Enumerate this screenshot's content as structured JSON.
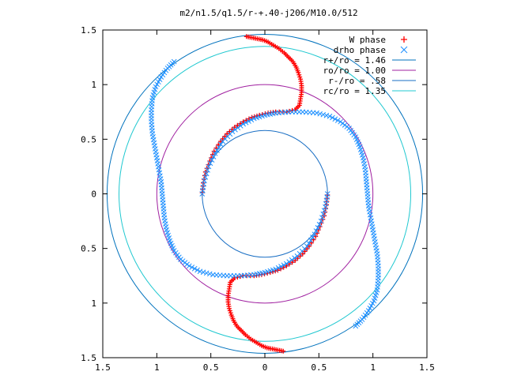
{
  "chart_data": {
    "type": "scatter",
    "title": "m2/n1.5/q1.5/r-+.40-j206/M10.0/512",
    "xlim": [
      -1.5,
      1.5
    ],
    "ylim": [
      -1.5,
      1.5
    ],
    "x_ticks": [
      "1.5",
      "1",
      "0.5",
      "0",
      "0.5",
      "1",
      "1.5"
    ],
    "y_ticks": [
      "1.5",
      "1",
      "0.5",
      "0",
      "0.5",
      "1",
      "1.5"
    ],
    "x_tick_values": [
      -1.5,
      -1,
      -0.5,
      0,
      0.5,
      1,
      1.5
    ],
    "y_tick_values": [
      1.5,
      1,
      0.5,
      0,
      -0.5,
      -1,
      -1.5
    ],
    "legend_position": "top-right",
    "circles": [
      {
        "label": "r+/ro = 1.46",
        "r": 1.46,
        "color": "#0072bd"
      },
      {
        "label": "ro/ro = 1.00",
        "r": 1.0,
        "color": "#a020a0"
      },
      {
        "label": "r-/ro = .58",
        "r": 0.58,
        "color": "#1a6fc4"
      },
      {
        "label": "rc/ro = 1.35",
        "r": 1.35,
        "color": "#20c8d0"
      }
    ],
    "series": [
      {
        "name": "W phase",
        "marker": "+",
        "color": "#ff0000",
        "points": [
          [
            -0.17,
            1.44
          ],
          [
            -0.12,
            1.43
          ],
          [
            -0.07,
            1.42
          ],
          [
            -0.02,
            1.41
          ],
          [
            0.03,
            1.39
          ],
          [
            0.08,
            1.36
          ],
          [
            0.13,
            1.33
          ],
          [
            0.18,
            1.29
          ],
          [
            0.22,
            1.25
          ],
          [
            0.26,
            1.21
          ],
          [
            0.29,
            1.16
          ],
          [
            0.31,
            1.11
          ],
          [
            0.33,
            1.05
          ],
          [
            0.34,
            0.99
          ],
          [
            0.34,
            0.93
          ],
          [
            0.33,
            0.87
          ],
          [
            0.32,
            0.81
          ],
          [
            0.28,
            0.77
          ],
          [
            0.2,
            0.75
          ],
          [
            0.1,
            0.75
          ],
          [
            0.03,
            0.74
          ],
          [
            -0.05,
            0.72
          ],
          [
            -0.12,
            0.7
          ],
          [
            -0.2,
            0.66
          ],
          [
            -0.28,
            0.61
          ],
          [
            -0.35,
            0.55
          ],
          [
            -0.41,
            0.48
          ],
          [
            -0.47,
            0.39
          ],
          [
            -0.51,
            0.3
          ],
          [
            -0.55,
            0.2
          ],
          [
            -0.57,
            0.1
          ],
          [
            -0.58,
            0.01
          ],
          [
            0.17,
            -1.44
          ],
          [
            0.12,
            -1.43
          ],
          [
            0.07,
            -1.42
          ],
          [
            0.02,
            -1.41
          ],
          [
            -0.03,
            -1.39
          ],
          [
            -0.08,
            -1.36
          ],
          [
            -0.13,
            -1.33
          ],
          [
            -0.18,
            -1.29
          ],
          [
            -0.22,
            -1.25
          ],
          [
            -0.26,
            -1.21
          ],
          [
            -0.29,
            -1.16
          ],
          [
            -0.31,
            -1.11
          ],
          [
            -0.33,
            -1.05
          ],
          [
            -0.34,
            -0.99
          ],
          [
            -0.34,
            -0.93
          ],
          [
            -0.33,
            -0.87
          ],
          [
            -0.32,
            -0.81
          ],
          [
            -0.28,
            -0.77
          ],
          [
            -0.2,
            -0.75
          ],
          [
            -0.1,
            -0.75
          ],
          [
            -0.03,
            -0.74
          ],
          [
            0.05,
            -0.72
          ],
          [
            0.12,
            -0.7
          ],
          [
            0.2,
            -0.66
          ],
          [
            0.28,
            -0.61
          ],
          [
            0.35,
            -0.55
          ],
          [
            0.41,
            -0.48
          ],
          [
            0.47,
            -0.39
          ],
          [
            0.51,
            -0.3
          ],
          [
            0.55,
            -0.2
          ],
          [
            0.57,
            -0.1
          ],
          [
            0.58,
            -0.01
          ]
        ]
      },
      {
        "name": "drho phase",
        "marker": "x",
        "color": "#1e90ff",
        "points": [
          [
            -0.84,
            1.21
          ],
          [
            -0.9,
            1.15
          ],
          [
            -0.96,
            1.07
          ],
          [
            -1.01,
            0.98
          ],
          [
            -1.04,
            0.88
          ],
          [
            -1.05,
            0.77
          ],
          [
            -1.05,
            0.66
          ],
          [
            -1.04,
            0.55
          ],
          [
            -1.02,
            0.44
          ],
          [
            -1.0,
            0.33
          ],
          [
            -0.98,
            0.22
          ],
          [
            -0.96,
            0.11
          ],
          [
            -0.95,
            0.0
          ],
          [
            -0.94,
            -0.11
          ],
          [
            -0.93,
            -0.22
          ],
          [
            -0.91,
            -0.33
          ],
          [
            -0.88,
            -0.43
          ],
          [
            -0.84,
            -0.52
          ],
          [
            -0.78,
            -0.6
          ],
          [
            -0.7,
            -0.66
          ],
          [
            -0.6,
            -0.71
          ],
          [
            -0.48,
            -0.74
          ],
          [
            -0.35,
            -0.75
          ],
          [
            -0.22,
            -0.75
          ],
          [
            -0.1,
            -0.74
          ],
          [
            0.0,
            -0.72
          ],
          [
            0.1,
            -0.69
          ],
          [
            0.2,
            -0.64
          ],
          [
            0.3,
            -0.57
          ],
          [
            0.39,
            -0.48
          ],
          [
            0.46,
            -0.37
          ],
          [
            0.52,
            -0.25
          ],
          [
            0.56,
            -0.12
          ],
          [
            0.58,
            0.0
          ],
          [
            0.84,
            -1.21
          ],
          [
            0.9,
            -1.15
          ],
          [
            0.96,
            -1.07
          ],
          [
            1.01,
            -0.98
          ],
          [
            1.04,
            -0.88
          ],
          [
            1.05,
            -0.77
          ],
          [
            1.05,
            -0.66
          ],
          [
            1.04,
            -0.55
          ],
          [
            1.02,
            -0.44
          ],
          [
            1.0,
            -0.33
          ],
          [
            0.98,
            -0.22
          ],
          [
            0.96,
            -0.11
          ],
          [
            0.95,
            0.0
          ],
          [
            0.94,
            0.11
          ],
          [
            0.93,
            0.22
          ],
          [
            0.91,
            0.33
          ],
          [
            0.88,
            0.43
          ],
          [
            0.84,
            0.52
          ],
          [
            0.78,
            0.6
          ],
          [
            0.7,
            0.66
          ],
          [
            0.6,
            0.71
          ],
          [
            0.48,
            0.74
          ],
          [
            0.35,
            0.75
          ],
          [
            0.22,
            0.75
          ],
          [
            0.1,
            0.74
          ],
          [
            0.0,
            0.72
          ],
          [
            -0.1,
            0.69
          ],
          [
            -0.2,
            0.64
          ],
          [
            -0.3,
            0.57
          ],
          [
            -0.39,
            0.48
          ],
          [
            -0.46,
            0.37
          ],
          [
            -0.52,
            0.25
          ],
          [
            -0.56,
            0.12
          ],
          [
            -0.58,
            0.0
          ]
        ]
      }
    ]
  }
}
